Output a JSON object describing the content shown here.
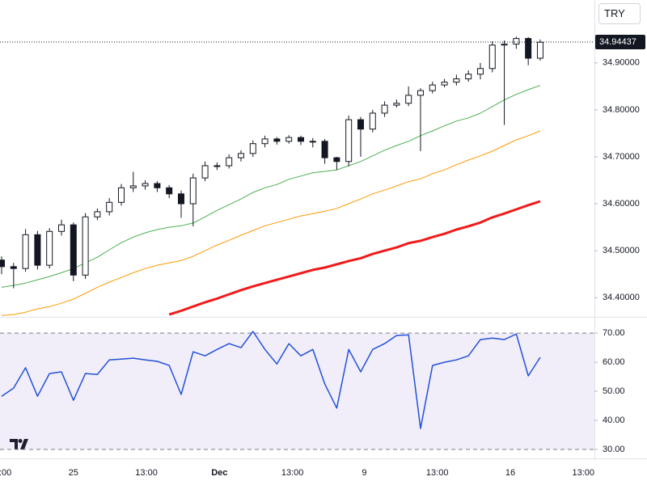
{
  "currency_button": "TRY",
  "chart_data": [
    {
      "type": "candlestick",
      "xlim": [
        -0.135,
        49.53
      ],
      "xticks": [
        {
          "value": -0.1,
          "label": "13:00"
        },
        {
          "value": 6.0,
          "label": "25"
        },
        {
          "value": 12.1,
          "label": "13:00"
        },
        {
          "value": 18.2,
          "label": "Dec"
        },
        {
          "value": 24.3,
          "label": "13:00"
        },
        {
          "value": 30.3,
          "label": "9"
        },
        {
          "value": 36.4,
          "label": "13:00"
        },
        {
          "value": 42.5,
          "label": "16"
        },
        {
          "value": 48.6,
          "label": "13:00"
        }
      ],
      "ylim": [
        34.359,
        35.034
      ],
      "yticks": [
        {
          "value": 34.4,
          "label": "34.40000"
        },
        {
          "value": 34.5,
          "label": "34.50000"
        },
        {
          "value": 34.6,
          "label": "34.60000"
        },
        {
          "value": 34.7,
          "label": "34.70000"
        },
        {
          "value": 34.8,
          "label": "34.80000"
        },
        {
          "value": 34.9,
          "label": "34.90000"
        }
      ],
      "last_price": {
        "value": 34.94437,
        "label": "34.94437"
      },
      "open": [
        34.48,
        34.466,
        34.462,
        34.534,
        34.469,
        34.541,
        34.555,
        34.448,
        34.572,
        34.583,
        34.603,
        34.634,
        34.638,
        34.643,
        34.634,
        34.621,
        34.6,
        34.655,
        34.681,
        34.681,
        34.698,
        34.707,
        34.728,
        34.738,
        34.733,
        34.741,
        34.733,
        34.733,
        34.698,
        34.69,
        34.779,
        34.759,
        34.793,
        34.81,
        34.814,
        34.831,
        34.841,
        34.853,
        34.859,
        34.866,
        34.876,
        34.888,
        34.938,
        34.94,
        34.952,
        34.91
      ],
      "high": [
        34.488,
        34.474,
        34.546,
        34.542,
        34.548,
        34.566,
        34.56,
        34.58,
        34.59,
        34.612,
        34.642,
        34.668,
        34.65,
        34.648,
        34.64,
        34.628,
        34.664,
        34.69,
        34.688,
        34.705,
        34.714,
        34.735,
        34.745,
        34.742,
        34.746,
        34.745,
        34.74,
        34.738,
        34.7,
        34.788,
        34.785,
        34.8,
        34.818,
        34.822,
        34.85,
        34.846,
        34.86,
        34.866,
        34.875,
        34.884,
        34.9,
        34.946,
        34.948,
        34.956,
        34.955,
        34.95
      ],
      "low": [
        34.45,
        34.42,
        34.455,
        34.46,
        34.462,
        34.532,
        34.435,
        34.44,
        34.565,
        34.575,
        34.596,
        34.625,
        34.63,
        34.625,
        34.612,
        34.57,
        34.552,
        34.648,
        34.672,
        34.675,
        34.69,
        34.7,
        34.72,
        34.726,
        34.728,
        34.725,
        34.72,
        34.685,
        34.672,
        34.68,
        34.7,
        34.752,
        34.785,
        34.805,
        34.808,
        34.712,
        34.835,
        34.848,
        34.852,
        34.86,
        34.865,
        34.88,
        34.768,
        34.93,
        34.895,
        34.905
      ],
      "close": [
        34.466,
        34.462,
        34.534,
        34.469,
        34.541,
        34.555,
        34.448,
        34.572,
        34.583,
        34.603,
        34.634,
        34.638,
        34.643,
        34.634,
        34.621,
        34.6,
        34.655,
        34.681,
        34.681,
        34.698,
        34.707,
        34.728,
        34.738,
        34.733,
        34.741,
        34.733,
        34.733,
        34.698,
        34.69,
        34.779,
        34.759,
        34.793,
        34.81,
        34.814,
        34.831,
        34.841,
        34.853,
        34.859,
        34.866,
        34.876,
        34.888,
        34.938,
        34.94,
        34.952,
        34.91,
        34.944
      ],
      "up_color": "#ffffff",
      "down_color": "#131722",
      "edge_color": "#131722",
      "lines": [
        {
          "color": "#4caf50",
          "width": 1,
          "values": [
            34.422,
            34.426,
            34.431,
            34.438,
            34.445,
            34.453,
            34.462,
            34.474,
            34.486,
            34.502,
            34.517,
            34.529,
            34.538,
            34.545,
            34.55,
            34.553,
            34.559,
            34.572,
            34.586,
            34.598,
            34.61,
            34.624,
            34.634,
            34.641,
            34.652,
            34.659,
            34.666,
            34.669,
            34.672,
            34.681,
            34.69,
            34.702,
            34.714,
            34.724,
            34.733,
            34.745,
            34.755,
            34.766,
            34.776,
            34.783,
            34.793,
            34.807,
            34.821,
            34.833,
            34.843,
            34.852
          ]
        },
        {
          "color": "#ff9800",
          "width": 1,
          "values": [
            34.362,
            34.364,
            34.369,
            34.376,
            34.381,
            34.388,
            34.397,
            34.409,
            34.422,
            34.433,
            34.443,
            34.453,
            34.462,
            34.469,
            34.474,
            34.479,
            34.488,
            34.5,
            34.512,
            34.522,
            34.533,
            34.543,
            34.553,
            34.56,
            34.567,
            34.574,
            34.579,
            34.584,
            34.59,
            34.6,
            34.61,
            34.621,
            34.629,
            34.638,
            34.647,
            34.653,
            34.664,
            34.672,
            34.683,
            34.693,
            34.702,
            34.712,
            34.724,
            34.736,
            34.745,
            34.755
          ]
        },
        {
          "color": "#f21a1a",
          "width": 3,
          "values": [
            null,
            null,
            null,
            null,
            null,
            null,
            null,
            null,
            null,
            null,
            null,
            null,
            null,
            null,
            34.364,
            34.372,
            34.381,
            34.39,
            34.398,
            34.407,
            34.416,
            34.424,
            34.431,
            34.438,
            34.445,
            34.452,
            34.459,
            34.464,
            34.471,
            34.478,
            34.484,
            34.493,
            34.5,
            34.507,
            34.516,
            34.521,
            34.529,
            34.536,
            34.545,
            34.552,
            34.56,
            34.571,
            34.579,
            34.588,
            34.597,
            34.605
          ]
        }
      ]
    },
    {
      "type": "rsi",
      "ylim": [
        27.5,
        75.6
      ],
      "yticks": [
        {
          "value": 30,
          "label": "30.00"
        },
        {
          "value": 40,
          "label": "40.00"
        },
        {
          "value": 50,
          "label": "50.00"
        },
        {
          "value": 60,
          "label": "60.00"
        },
        {
          "value": 70,
          "label": "70.00"
        }
      ],
      "band": [
        30,
        70
      ],
      "band_color": "#7e57c2",
      "color": "#2151d8",
      "values": [
        48.3,
        51.1,
        58.1,
        48.3,
        56.1,
        56.7,
        46.9,
        56.1,
        55.8,
        60.8,
        61.1,
        61.4,
        60.8,
        60.3,
        58.9,
        48.9,
        63.6,
        62.2,
        64.4,
        66.4,
        65.0,
        70.6,
        64.4,
        59.4,
        66.4,
        62.2,
        64.4,
        52.5,
        44.2,
        64.4,
        56.7,
        64.4,
        66.4,
        69.2,
        69.4,
        37.2,
        58.9,
        60.0,
        60.8,
        62.2,
        67.8,
        68.3,
        67.8,
        69.7,
        55.3,
        61.7
      ]
    }
  ]
}
